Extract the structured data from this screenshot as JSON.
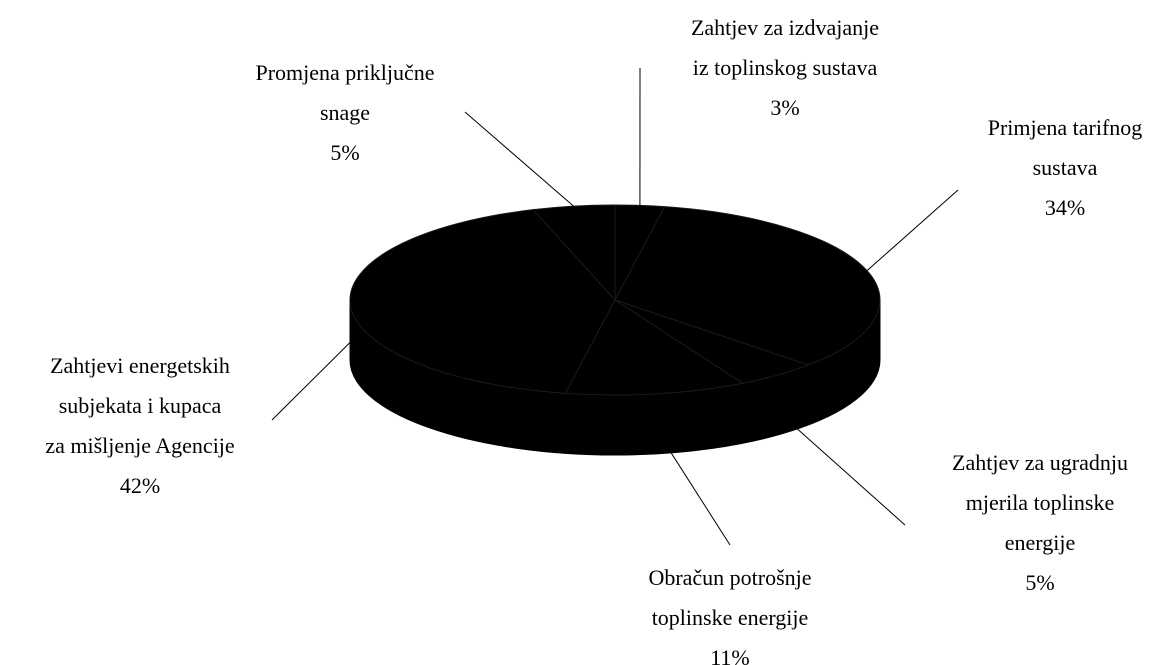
{
  "chart_data": {
    "type": "pie",
    "categories": [
      "Zahtjev za izdvajanje\niz toplinskog sustava",
      "Primjena tarifnog\nsustava",
      "Zahtjev za ugradnju\nmjerila toplinske\nenergije",
      "Obračun potrošnje\ntoplinske energije",
      "Zahtjevi energetskih\nsubjekata i kupaca\nza mišljenje Agencije",
      "Promjena priključne\nsnage"
    ],
    "values": [
      3,
      34,
      5,
      11,
      42,
      5
    ],
    "value_labels": [
      "3%",
      "34%",
      "5%",
      "11%",
      "42%",
      "5%"
    ],
    "colors": [
      "#000000",
      "#000000",
      "#000000",
      "#000000",
      "#000000",
      "#000000"
    ]
  }
}
